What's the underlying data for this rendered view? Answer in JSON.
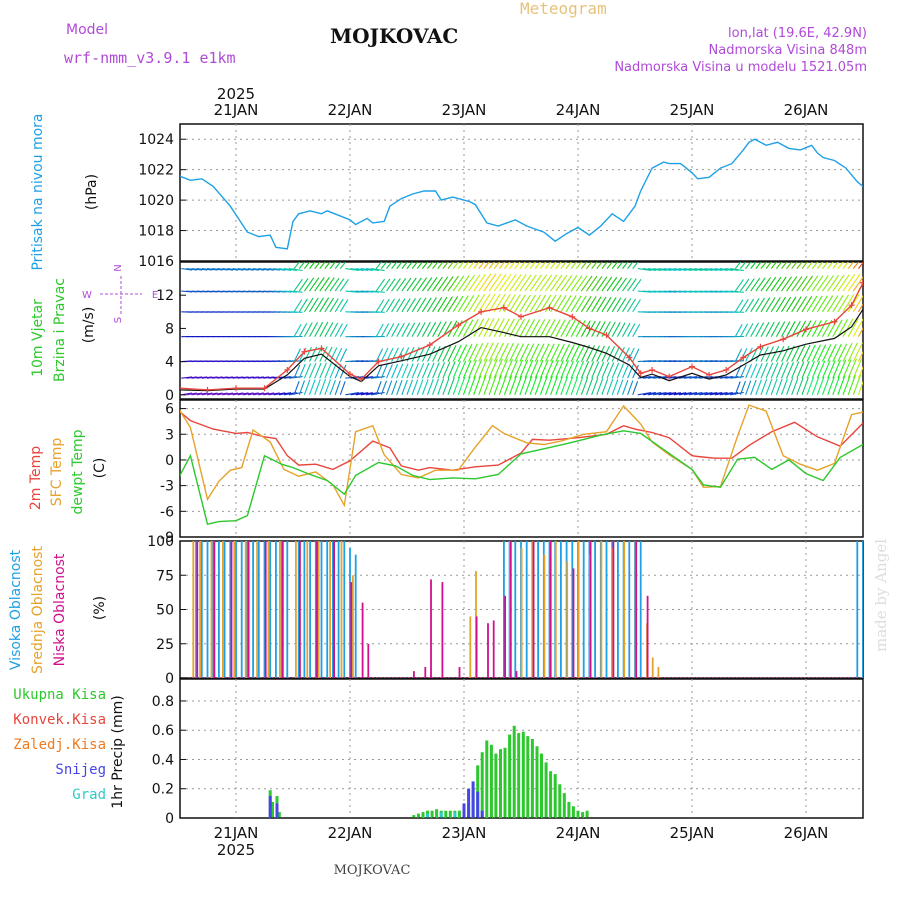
{
  "header": {
    "station_title": "MOJKOVAC",
    "chart_kind": "Meteogram",
    "model_label": "Model",
    "model_name": "wrf-nmm_v3.9.1  e1km",
    "lonlat": "lon,lat (19.6E, 42.9N)",
    "elevation": "Nadmorska Visina 848m",
    "model_elevation": "Nadmorska Visina u modelu 1521.05m",
    "footer_station": "MOJKOVAC",
    "watermark": "made by Angel",
    "year_top": "2025",
    "year_bottom": "2025",
    "dates": [
      "21JAN",
      "22JAN",
      "23JAN",
      "24JAN",
      "25JAN",
      "26JAN"
    ]
  },
  "colors": {
    "pressure": "#1ea0e6",
    "temp2m": "#e8453c",
    "sfc": "#e6a22a",
    "dew": "#2dc82d",
    "high_cloud": "#1ea0e6",
    "mid_cloud": "#e6a22a",
    "low_cloud": "#d0108c",
    "total_precip": "#2dc82d",
    "conv_precip": "#e8453c",
    "frz_precip": "#f07a1e",
    "snow": "#4646e6",
    "hail": "#2ecbc8",
    "model": "#b04ad8"
  },
  "chart_data": [
    {
      "type": "line",
      "panel": "pressure",
      "ylabel_rotated": "Pritisak na nivou mora",
      "unit": "(hPa)",
      "ylim": [
        1016,
        1025
      ],
      "yticks": [
        1016,
        1018,
        1020,
        1022,
        1024
      ],
      "grid": true,
      "series": [
        {
          "name": "Pritisak na nivou mora",
          "x": [
            0,
            0.1,
            0.2,
            0.3,
            0.45,
            0.6,
            0.7,
            0.8,
            0.85,
            0.95,
            1.0,
            1.05,
            1.15,
            1.25,
            1.3,
            1.4,
            1.5,
            1.55,
            1.65,
            1.7,
            1.8,
            1.85,
            1.95,
            2.05,
            2.15,
            2.25,
            2.3,
            2.4,
            2.45,
            2.55,
            2.6,
            2.7,
            2.8,
            2.95,
            3.05,
            3.2,
            3.3,
            3.4,
            3.5,
            3.6,
            3.7,
            3.8,
            3.9,
            4.0,
            4.05,
            4.15,
            4.25,
            4.3,
            4.4,
            4.5,
            4.55,
            4.65,
            4.75,
            4.85,
            4.95,
            5.0,
            5.05,
            5.15,
            5.25,
            5.35,
            5.45,
            5.55,
            5.6,
            5.65,
            5.75,
            5.85,
            5.95,
            6.0
          ],
          "y": [
            1021.6,
            1021.3,
            1021.4,
            1020.9,
            1019.6,
            1017.9,
            1017.6,
            1017.7,
            1016.9,
            1016.8,
            1018.6,
            1019.1,
            1019.3,
            1019.1,
            1019.3,
            1019.0,
            1018.7,
            1018.4,
            1018.8,
            1018.5,
            1018.6,
            1019.6,
            1020.1,
            1020.4,
            1020.6,
            1020.6,
            1020.0,
            1020.2,
            1020.1,
            1019.9,
            1019.7,
            1018.5,
            1018.3,
            1018.7,
            1018.3,
            1017.9,
            1017.3,
            1017.8,
            1018.2,
            1017.7,
            1018.3,
            1019.1,
            1018.6,
            1019.6,
            1020.6,
            1022.1,
            1022.5,
            1022.4,
            1022.4,
            1021.8,
            1021.4,
            1021.5,
            1022.1,
            1022.4,
            1023.3,
            1023.8,
            1024.0,
            1023.6,
            1023.8,
            1023.4,
            1023.3,
            1023.6,
            1023.1,
            1022.8,
            1022.6,
            1022.1,
            1021.2,
            1020.9
          ]
        }
      ]
    },
    {
      "type": "line",
      "panel": "wind",
      "ylabel_rotated": [
        "10m Vjetar",
        "Brzina i Pravac"
      ],
      "unit": "(m/s)",
      "ylim": [
        -0.5,
        16
      ],
      "yticks": [
        0,
        4,
        8,
        12
      ],
      "compass": {
        "north": "N",
        "south": "S",
        "west": "W",
        "east": "E"
      },
      "series": [
        {
          "name": "Brzina",
          "x": [
            0,
            0.25,
            0.5,
            0.75,
            0.95,
            1.1,
            1.25,
            1.5,
            1.6,
            1.75,
            1.95,
            2.2,
            2.45,
            2.65,
            2.85,
            3.0,
            3.25,
            3.45,
            3.6,
            3.75,
            3.95,
            4.05,
            4.15,
            4.3,
            4.5,
            4.65,
            4.8,
            4.95,
            5.1,
            5.3,
            5.5,
            5.75,
            5.9,
            6.0
          ],
          "y": [
            0.6,
            0.5,
            0.7,
            0.7,
            2.4,
            4.4,
            4.9,
            2.2,
            1.6,
            3.5,
            4.1,
            4.9,
            6.4,
            8.1,
            7.5,
            7.0,
            7.0,
            6.3,
            5.7,
            5.0,
            3.6,
            2.1,
            2.5,
            1.7,
            2.6,
            1.9,
            2.4,
            3.6,
            4.8,
            5.3,
            6.1,
            6.8,
            8.2,
            10.3
          ]
        },
        {
          "name": "Udari",
          "x": [
            0,
            0.25,
            0.5,
            0.75,
            0.95,
            1.1,
            1.25,
            1.5,
            1.6,
            1.75,
            1.95,
            2.2,
            2.45,
            2.65,
            2.85,
            3.0,
            3.25,
            3.45,
            3.6,
            3.75,
            3.95,
            4.05,
            4.15,
            4.3,
            4.5,
            4.65,
            4.8,
            4.95,
            5.1,
            5.3,
            5.5,
            5.75,
            5.9,
            6.0
          ],
          "y": [
            0.8,
            0.6,
            0.8,
            0.8,
            3.0,
            5.2,
            5.6,
            2.5,
            1.9,
            4.0,
            4.6,
            6.0,
            8.4,
            10.0,
            10.5,
            9.4,
            10.5,
            9.4,
            8.0,
            7.2,
            4.5,
            2.6,
            3.0,
            2.2,
            3.4,
            2.4,
            3.0,
            4.5,
            5.8,
            6.7,
            7.9,
            8.8,
            10.8,
            13.5
          ]
        }
      ]
    },
    {
      "type": "line",
      "panel": "temperature",
      "ylabel_rotated": [
        "2m Temp",
        "SFC Temp",
        "dewpt Temp"
      ],
      "unit": "(C)",
      "ylim": [
        -9,
        7
      ],
      "yticks": [
        -9,
        -6,
        -3,
        0,
        3,
        6
      ],
      "grid": true,
      "series": [
        {
          "name": "2m Temp",
          "x": [
            0,
            0.1,
            0.3,
            0.5,
            0.6,
            0.75,
            0.85,
            0.95,
            1.05,
            1.2,
            1.35,
            1.5,
            1.7,
            1.85,
            1.95,
            2.1,
            2.2,
            2.4,
            2.6,
            2.8,
            3.0,
            3.1,
            3.25,
            3.5,
            3.75,
            3.9,
            4.0,
            4.15,
            4.3,
            4.5,
            4.55,
            4.7,
            4.85,
            5.0,
            5.2,
            5.4,
            5.6,
            5.8,
            6.0
          ],
          "y": [
            5.7,
            4.6,
            3.6,
            3.1,
            3.2,
            2.7,
            2.5,
            0.5,
            -0.6,
            -0.5,
            -1.1,
            -0.1,
            2.2,
            1.4,
            -0.7,
            -1.2,
            -0.9,
            -1.2,
            -0.8,
            -0.6,
            0.8,
            2.4,
            2.3,
            2.6,
            3.0,
            4.0,
            3.6,
            3.2,
            2.6,
            0.5,
            0.4,
            0.2,
            0.2,
            1.7,
            3.3,
            4.4,
            2.7,
            1.6,
            4.3
          ]
        },
        {
          "name": "SFC Temp",
          "x": [
            0,
            0.1,
            0.25,
            0.35,
            0.45,
            0.55,
            0.65,
            0.8,
            0.92,
            1.05,
            1.2,
            1.35,
            1.45,
            1.55,
            1.7,
            1.8,
            1.95,
            2.1,
            2.25,
            2.45,
            2.6,
            2.75,
            2.85,
            3.05,
            3.2,
            3.35,
            3.55,
            3.75,
            3.9,
            4.05,
            4.15,
            4.3,
            4.5,
            4.6,
            4.75,
            4.9,
            5.0,
            5.15,
            5.3,
            5.45,
            5.6,
            5.75,
            5.9,
            6.0
          ],
          "y": [
            5.9,
            3.8,
            -4.6,
            -2.5,
            -1.2,
            -0.9,
            3.5,
            2.1,
            -1.1,
            -1.9,
            -1.4,
            -2.9,
            -5.3,
            3.3,
            4.0,
            0.6,
            -1.7,
            -2.1,
            -1.2,
            -1.2,
            1.5,
            4.0,
            3.1,
            2.0,
            1.8,
            2.2,
            3.0,
            3.3,
            6.3,
            4.2,
            2.1,
            0.6,
            -1.1,
            -3.2,
            -3.1,
            2.8,
            6.4,
            5.7,
            0.5,
            -0.5,
            -1.2,
            -0.4,
            5.3,
            5.6
          ]
        },
        {
          "name": "dewpt Temp",
          "x": [
            0,
            0.1,
            0.25,
            0.35,
            0.5,
            0.6,
            0.75,
            0.9,
            1.0,
            1.15,
            1.3,
            1.45,
            1.55,
            1.75,
            1.9,
            2.05,
            2.2,
            2.4,
            2.6,
            2.8,
            3.0,
            3.2,
            3.4,
            3.55,
            3.7,
            3.9,
            4.05,
            4.2,
            4.35,
            4.5,
            4.6,
            4.75,
            4.9,
            5.05,
            5.2,
            5.35,
            5.5,
            5.65,
            5.8,
            6.0
          ],
          "y": [
            -2.0,
            0.5,
            -7.5,
            -7.2,
            -7.1,
            -6.5,
            0.5,
            -0.5,
            -0.9,
            -1.7,
            -2.4,
            -4.0,
            -1.8,
            -0.3,
            -0.7,
            -1.8,
            -2.3,
            -2.1,
            -2.2,
            -1.7,
            0.7,
            1.3,
            1.9,
            2.4,
            2.9,
            3.4,
            3.1,
            1.7,
            0.3,
            -1.1,
            -2.9,
            -3.2,
            0.1,
            0.3,
            -1.1,
            0.0,
            -1.6,
            -2.4,
            0.3,
            1.8
          ]
        }
      ]
    },
    {
      "type": "bar",
      "panel": "clouds",
      "ylabel_rotated": [
        "Visoka Oblacnost",
        "Srednja Oblacnost",
        "Niska Oblacnost"
      ],
      "unit": "(%)",
      "ylim": [
        0,
        100
      ],
      "yticks": [
        0,
        25,
        50,
        75,
        100
      ],
      "grid": true,
      "series": [
        {
          "name": "Visoka Oblacnost",
          "x": [
            0.15,
            0.2,
            0.25,
            0.3,
            0.35,
            0.4,
            0.45,
            0.5,
            0.55,
            0.6,
            0.65,
            0.7,
            0.75,
            0.8,
            0.85,
            0.9,
            0.95,
            1.05,
            1.1,
            1.15,
            1.2,
            1.25,
            1.3,
            1.35,
            1.4,
            1.45,
            1.5,
            1.55,
            2.85,
            2.9,
            2.95,
            3.0,
            3.05,
            3.1,
            3.15,
            3.2,
            3.25,
            3.3,
            3.35,
            3.4,
            3.45,
            3.5,
            3.55,
            3.6,
            3.65,
            3.7,
            3.75,
            3.8,
            3.85,
            3.9,
            3.95,
            4.0,
            4.05,
            5.95,
            6.0
          ],
          "values": [
            100,
            100,
            100,
            100,
            100,
            100,
            100,
            100,
            100,
            100,
            100,
            100,
            100,
            100,
            100,
            100,
            100,
            100,
            100,
            100,
            100,
            100,
            100,
            100,
            100,
            100,
            95,
            90,
            100,
            100,
            100,
            100,
            100,
            100,
            100,
            100,
            100,
            100,
            100,
            100,
            100,
            100,
            100,
            100,
            100,
            100,
            100,
            100,
            100,
            100,
            100,
            100,
            100,
            100,
            100
          ]
        },
        {
          "name": "Srednja Oblacnost",
          "x": [
            0.12,
            0.18,
            0.28,
            0.38,
            0.48,
            0.58,
            0.68,
            0.78,
            0.88,
            1.02,
            1.12,
            1.22,
            1.32,
            1.42,
            1.52,
            2.55,
            2.6,
            2.9,
            3.0,
            3.1,
            3.2,
            3.3,
            3.4,
            3.5,
            3.6,
            3.7,
            3.8,
            3.9,
            4.0,
            4.1,
            4.15,
            4.2
          ],
          "values": [
            100,
            100,
            100,
            100,
            100,
            100,
            100,
            100,
            100,
            100,
            100,
            100,
            100,
            100,
            75,
            45,
            78,
            100,
            95,
            100,
            90,
            100,
            85,
            100,
            90,
            100,
            95,
            100,
            100,
            40,
            15,
            8
          ]
        },
        {
          "name": "Niska Oblacnost",
          "x": [
            0.15,
            0.3,
            0.45,
            0.6,
            0.75,
            0.9,
            1.05,
            1.2,
            1.35,
            1.5,
            1.6,
            1.65,
            2.05,
            2.15,
            2.2,
            2.3,
            2.45,
            2.6,
            2.7,
            2.75,
            2.85,
            2.9,
            2.95,
            3.1,
            3.25,
            3.45,
            3.6,
            3.8,
            4.0,
            4.1
          ],
          "values": [
            100,
            100,
            100,
            100,
            100,
            100,
            100,
            100,
            100,
            70,
            55,
            25,
            5,
            8,
            72,
            70,
            8,
            45,
            40,
            42,
            60,
            100,
            5,
            100,
            100,
            80,
            100,
            100,
            100,
            60
          ]
        }
      ]
    },
    {
      "type": "bar",
      "panel": "precipitation",
      "ylabel_rotated": "1hr Precip (mm)",
      "legend": [
        "Ukupna Kisa",
        "Konvek.Kisa",
        "Zaledj.Kisa",
        "Snijeg",
        "Grad"
      ],
      "ylim": [
        0,
        0.95
      ],
      "yticks": [
        0,
        0.2,
        0.4,
        0.6,
        0.8
      ],
      "grid": true,
      "series": [
        {
          "name": "Ukupna Kisa",
          "x": [
            0.8,
            0.82,
            0.86,
            0.88,
            2.06,
            2.1,
            2.14,
            2.18,
            2.22,
            2.26,
            2.3,
            2.34,
            2.38,
            2.42,
            2.46,
            2.5,
            2.54,
            2.58,
            2.62,
            2.66,
            2.7,
            2.74,
            2.78,
            2.82,
            2.86,
            2.9,
            2.94,
            2.98,
            3.02,
            3.06,
            3.1,
            3.14,
            3.18,
            3.22,
            3.26,
            3.3,
            3.34,
            3.38,
            3.42,
            3.46,
            3.5,
            3.54,
            3.58,
            3.62,
            3.66,
            3.7,
            3.74
          ],
          "values": [
            0.19,
            0.11,
            0.15,
            0.04,
            0.02,
            0.03,
            0.04,
            0.05,
            0.05,
            0.06,
            0.05,
            0.05,
            0.05,
            0.05,
            0.05,
            0.06,
            0.1,
            0.2,
            0.36,
            0.45,
            0.53,
            0.5,
            0.44,
            0.47,
            0.48,
            0.57,
            0.63,
            0.58,
            0.59,
            0.56,
            0.54,
            0.49,
            0.44,
            0.38,
            0.32,
            0.3,
            0.23,
            0.17,
            0.11,
            0.08,
            0.05,
            0.04,
            0.05,
            0,
            0,
            0,
            0
          ]
        },
        {
          "name": "Snijeg",
          "x": [
            0.8,
            0.86,
            2.5,
            2.54,
            2.58,
            2.62,
            2.66
          ],
          "values": [
            0.15,
            0.1,
            0.1,
            0.2,
            0.25,
            0.18,
            0.05
          ]
        },
        {
          "name": "Grad",
          "x": [
            2.18,
            2.3,
            2.42
          ],
          "values": [
            0.03,
            0.04,
            0.04
          ]
        }
      ]
    }
  ]
}
